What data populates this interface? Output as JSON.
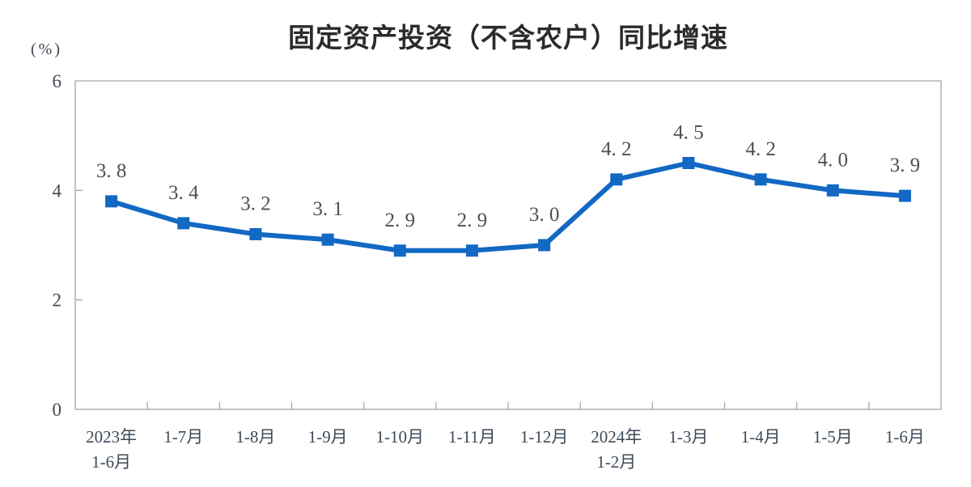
{
  "chart_data": {
    "type": "line",
    "title": "固定资产投资（不含农户）同比增速",
    "unit_label": "(%)",
    "categories": [
      "2023年\n1-6月",
      "1-7月",
      "1-8月",
      "1-9月",
      "1-10月",
      "1-11月",
      "1-12月",
      "2024年\n1-2月",
      "1-3月",
      "1-4月",
      "1-5月",
      "1-6月"
    ],
    "values": [
      3.8,
      3.4,
      3.2,
      3.1,
      2.9,
      2.9,
      3.0,
      4.2,
      4.5,
      4.2,
      4.0,
      3.9
    ],
    "point_labels": [
      "3. 8",
      "3. 4",
      "3. 2",
      "3. 1",
      "2. 9",
      "2. 9",
      "3. 0",
      "4. 2",
      "4. 5",
      "4. 2",
      "4. 0",
      "3. 9"
    ],
    "xlabel": "",
    "ylabel": "(%)",
    "ylim": [
      0,
      6
    ],
    "yticks": [
      0,
      2,
      4,
      6
    ],
    "grid": false,
    "legend_position": "none",
    "marker": "square",
    "colors": {
      "line": "#1268c3",
      "marker": "#1268c3",
      "axis": "#a6a6a6",
      "title": "#2b2b2b",
      "tick_label": "#3d4a58",
      "data_label": "#4f4f4f",
      "background": "#ffffff"
    }
  }
}
